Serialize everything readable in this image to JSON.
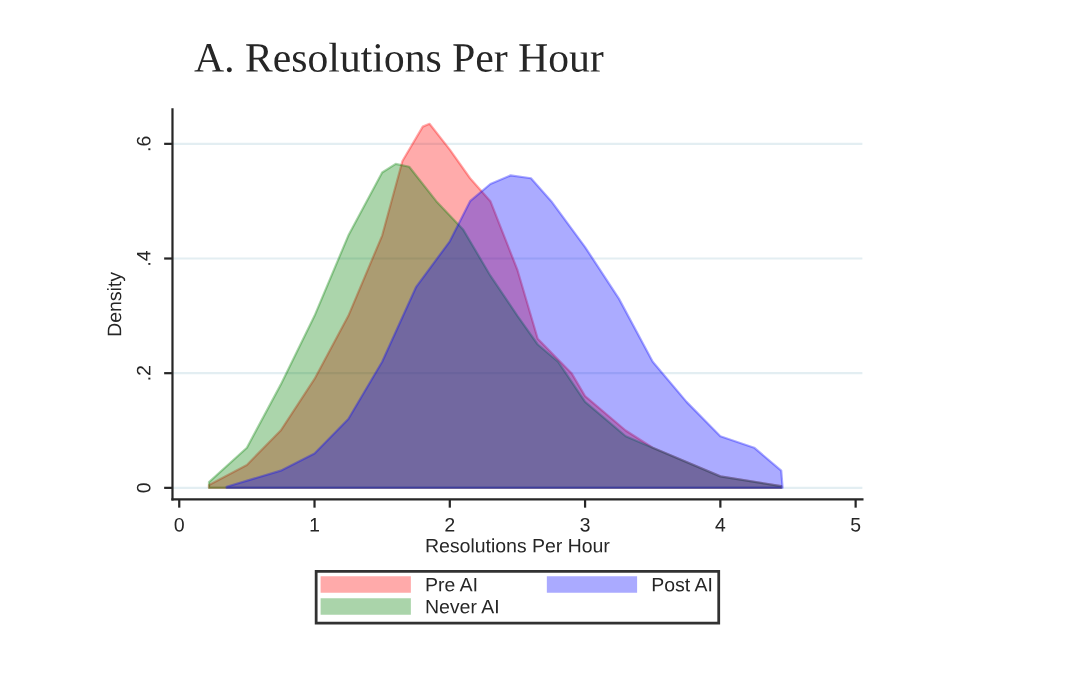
{
  "chart_data": {
    "type": "area",
    "title": "A. Resolutions Per Hour",
    "xlabel": "Resolutions Per Hour",
    "ylabel": "Density",
    "series": [
      {
        "name": "Pre AI",
        "color": "#ff0000",
        "x": [
          0.22,
          0.5,
          0.75,
          1.0,
          1.25,
          1.5,
          1.65,
          1.8,
          1.85,
          2.0,
          2.15,
          2.3,
          2.5,
          2.65,
          2.9,
          3.0,
          3.3,
          3.5,
          4.0,
          4.45
        ],
        "values": [
          0.005,
          0.04,
          0.1,
          0.19,
          0.3,
          0.44,
          0.57,
          0.63,
          0.635,
          0.59,
          0.54,
          0.5,
          0.38,
          0.26,
          0.2,
          0.16,
          0.1,
          0.07,
          0.02,
          0.003
        ]
      },
      {
        "name": "Never AI",
        "color": "#008000",
        "x": [
          0.22,
          0.5,
          0.75,
          1.0,
          1.25,
          1.5,
          1.6,
          1.7,
          1.9,
          2.1,
          2.3,
          2.5,
          2.65,
          2.8,
          3.0,
          3.3,
          3.5,
          4.0,
          4.45
        ],
        "values": [
          0.01,
          0.07,
          0.18,
          0.3,
          0.44,
          0.55,
          0.565,
          0.56,
          0.5,
          0.45,
          0.37,
          0.3,
          0.25,
          0.22,
          0.15,
          0.09,
          0.07,
          0.02,
          0.003
        ]
      },
      {
        "name": "Post AI",
        "color": "#0000ff",
        "x": [
          0.35,
          0.75,
          1.0,
          1.25,
          1.5,
          1.75,
          2.0,
          2.15,
          2.3,
          2.45,
          2.6,
          2.75,
          3.0,
          3.25,
          3.5,
          3.75,
          4.0,
          4.25,
          4.45,
          4.46
        ],
        "values": [
          0.002,
          0.03,
          0.06,
          0.12,
          0.22,
          0.35,
          0.43,
          0.5,
          0.53,
          0.545,
          0.54,
          0.5,
          0.42,
          0.33,
          0.22,
          0.15,
          0.09,
          0.07,
          0.03,
          0.0
        ]
      }
    ],
    "xlim": [
      -0.05,
      5.05
    ],
    "xticks": [
      0,
      1,
      2,
      3,
      4,
      5
    ],
    "ylim": [
      -0.02,
      0.66
    ],
    "yticks": [
      {
        "value": 0,
        "label": "0"
      },
      {
        "value": 0.2,
        "label": ".2"
      },
      {
        "value": 0.4,
        "label": ".4"
      },
      {
        "value": 0.6,
        "label": ".6"
      }
    ],
    "grid": "y",
    "legend": "bottom"
  }
}
